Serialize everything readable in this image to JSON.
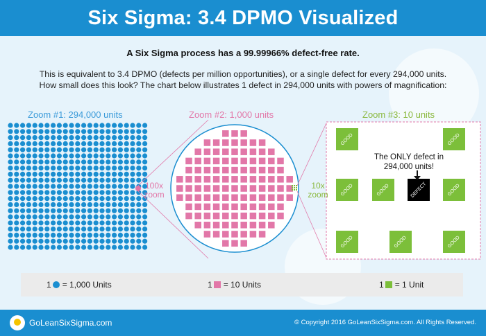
{
  "header": {
    "title": "Six Sigma: 3.4 DPMO Visualized"
  },
  "intro": {
    "headline": "A Six Sigma process has a 99.99966% defect-free rate.",
    "line1": "This is equivalent to 3.4 DPMO (defects per million opportunities), or a single defect for every 294,000 units.",
    "line2": "How small does this look? The chart below illustrates 1 defect in 294,000 units with powers of magnification:"
  },
  "zooms": {
    "z1": "Zoom #1: 294,000 units",
    "z2": "Zoom #2: 1,000 units",
    "z3": "Zoom #3: 10 units"
  },
  "magnify": {
    "m100": "100x zoom",
    "m10": "10x zoom"
  },
  "units": {
    "good_label": "GOOD",
    "defect_label": "DEFECT",
    "defect_note": "The ONLY defect in 294,000 units!"
  },
  "legend": {
    "dot": "= 1,000 Units",
    "pink": "= 10 Units",
    "green": "= 1 Unit",
    "count": "1"
  },
  "footer": {
    "brand": "GoLeanSixSigma.com",
    "copyright": "© Copyright 2016 GoLeanSixSigma.com. All Rights Reserved."
  },
  "colors": {
    "blue": "#1a8ed0",
    "pink": "#e277a8",
    "green": "#7cbf3a"
  },
  "icons": [
    "lightbulb-icon",
    "arrow-down-icon"
  ]
}
